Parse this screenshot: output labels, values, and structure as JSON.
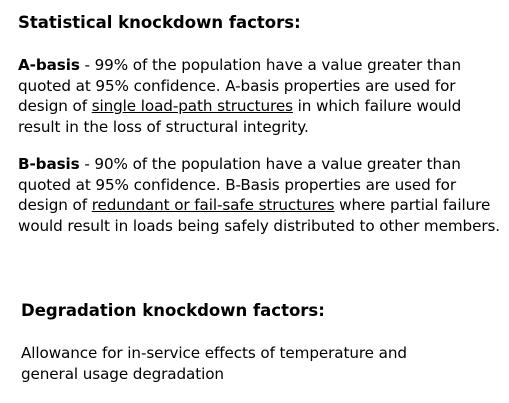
{
  "statistical": {
    "heading": "Statistical knockdown factors:",
    "a_basis": {
      "term": "A-basis",
      "text_1": " - 99% of the population have a value greater than quoted at 95% confidence.  A-basis properties are used for design of ",
      "underlined": "single load-path structures",
      "text_2": " in which failure would result in the loss of structural integrity."
    },
    "b_basis": {
      "term": "B-basis",
      "text_1": " - 90% of the population have a value greater than quoted at 95% confidence.  B-Basis properties are used for design of ",
      "underlined": "redundant or fail-safe structures",
      "text_2": " where partial failure would result in loads being safely distributed to other members."
    }
  },
  "degradation": {
    "heading": "Degradation knockdown factors:",
    "text": "Allowance for in-service effects of temperature and general usage degradation"
  }
}
